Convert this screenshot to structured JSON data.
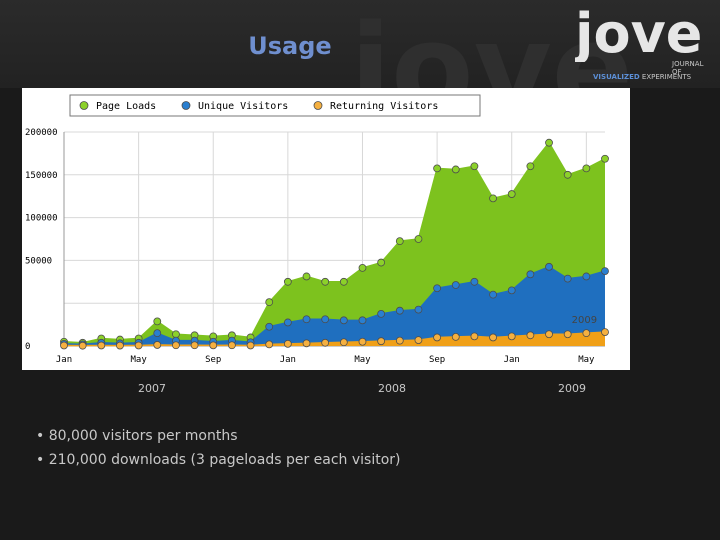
{
  "slide": {
    "title": "Usage",
    "years": [
      "2007",
      "2008",
      "2009"
    ],
    "bullets": [
      "80,000 visitors per months",
      "210,000 downloads (3 pageloads per each visitor)"
    ]
  },
  "logo": {
    "wordmark": "jove",
    "line1": "JOURNAL OF",
    "line2a": "VISUALIZED",
    "line2b": "EXPERIMENTS"
  },
  "chart_data": {
    "type": "area",
    "title": "",
    "legend_position": "top",
    "grid": true,
    "ylim": [
      0,
      200000
    ],
    "y_ticks": [
      "0",
      "",
      "50000",
      "100000",
      "150000",
      "200000"
    ],
    "x_ticks": [
      {
        "label": "Jan",
        "index": 0
      },
      {
        "label": "May",
        "index": 4
      },
      {
        "label": "Sep",
        "index": 8
      },
      {
        "label": "Jan",
        "index": 12
      },
      {
        "label": "May",
        "index": 16
      },
      {
        "label": "Sep",
        "index": 20
      },
      {
        "label": "Jan",
        "index": 24
      },
      {
        "label": "May",
        "index": 28
      }
    ],
    "annotation": "2009",
    "series": [
      {
        "name": "Page Loads",
        "fill": "#7dc21e",
        "point": "#8cd12a",
        "values": [
          4000,
          3000,
          7000,
          6000,
          7000,
          23000,
          11000,
          10000,
          9000,
          10000,
          8000,
          41000,
          60000,
          65000,
          60000,
          60000,
          73000,
          78000,
          98000,
          100000,
          166000,
          165000,
          168000,
          138000,
          142000,
          168000,
          190000,
          160000,
          166000,
          175000
        ]
      },
      {
        "name": "Unique Visitors",
        "fill": "#1f6fbf",
        "point": "#2a7fd0",
        "values": [
          2000,
          1500,
          3000,
          2500,
          3000,
          12000,
          5000,
          5000,
          4000,
          5000,
          3500,
          18000,
          22000,
          25000,
          25000,
          24000,
          24000,
          30000,
          33000,
          34000,
          54000,
          57000,
          60000,
          48000,
          52000,
          67000,
          74000,
          63000,
          65000,
          70000
        ]
      },
      {
        "name": "Returning Visitors",
        "fill": "#f0a018",
        "point": "#f5b040",
        "values": [
          500,
          300,
          500,
          400,
          500,
          1000,
          700,
          700,
          600,
          700,
          500,
          1500,
          2000,
          2500,
          3000,
          3500,
          4000,
          4500,
          5000,
          5500,
          8000,
          8500,
          9000,
          8000,
          9000,
          10000,
          11000,
          11000,
          12000,
          13000
        ]
      }
    ]
  }
}
